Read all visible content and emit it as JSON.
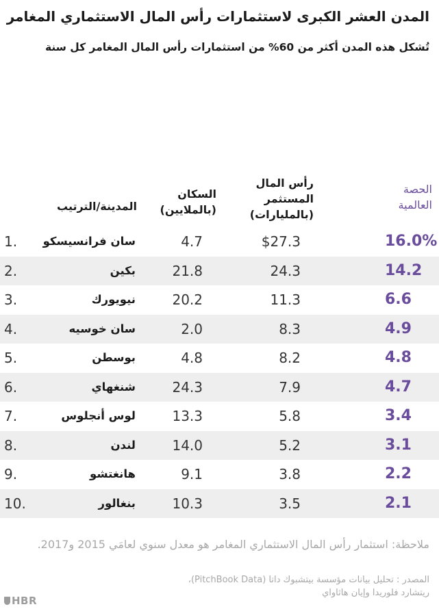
{
  "title": "المدن العشر الكبرى لاستثمارات رأس المال الاستثماري المغامر",
  "subtitle": "تُشكل هذه المدن أكثر من 60% من استثمارات رأس المال المغامر كل سنة",
  "headers": {
    "city": "المدينة/الترتيب",
    "pop_line1": "السكان",
    "pop_line2": "(بالملايين)",
    "vc_line1": "رأس المال",
    "vc_line2": "المستثمر",
    "vc_line3": "(بالمليارات)",
    "share_line1": "الحصة",
    "share_line2": "العالمية"
  },
  "chart_data": {
    "type": "table",
    "rows": [
      {
        "rank": "1.",
        "city": "سان فرانسيسكو",
        "population": "4.7",
        "vc": "$27.3",
        "share": "16.0%"
      },
      {
        "rank": "2.",
        "city": "بكين",
        "population": "21.8",
        "vc": "24.3",
        "share": "14.2"
      },
      {
        "rank": "3.",
        "city": "نيويورك",
        "population": "20.2",
        "vc": "11.3",
        "share": "6.6"
      },
      {
        "rank": "4.",
        "city": "سان خوسيه",
        "population": "2.0",
        "vc": "8.3",
        "share": "4.9"
      },
      {
        "rank": "5.",
        "city": "بوسطن",
        "population": "4.8",
        "vc": "8.2",
        "share": "4.8"
      },
      {
        "rank": "6.",
        "city": "شنغهاي",
        "population": "24.3",
        "vc": "7.9",
        "share": "4.7"
      },
      {
        "rank": "7.",
        "city": "لوس أنجلوس",
        "population": "13.3",
        "vc": "5.8",
        "share": "3.4"
      },
      {
        "rank": "8.",
        "city": "لندن",
        "population": "14.0",
        "vc": "5.2",
        "share": "3.1"
      },
      {
        "rank": "9.",
        "city": "هانغتشو",
        "population": "9.1",
        "vc": "3.8",
        "share": "2.2"
      },
      {
        "rank": "10.",
        "city": "بنغالور",
        "population": "10.3",
        "vc": "3.5",
        "share": "2.1"
      }
    ]
  },
  "note": "ملاحظة: استثمار رأس المال الاستثماري المغامر هو معدل سنوي لعامَي 2015 و2017.",
  "source_line1": "المصدر : تحليل بيانات مؤسسة بيتشبوك داتا (PitchBook Data)،",
  "source_line2": "ريتشارد فلوريدا وإيان هاثاواي",
  "logo": "HBR",
  "colors": {
    "accent": "#6a4c9c",
    "stripe": "#eeeeee",
    "muted": "#a7a7a7"
  }
}
